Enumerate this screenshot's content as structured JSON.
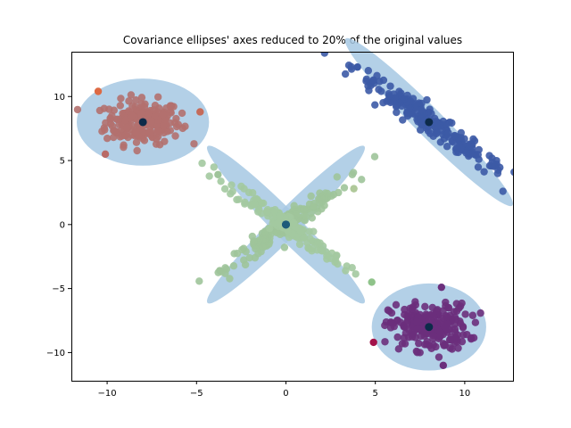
{
  "chart_data": {
    "type": "scatter",
    "title": "Covariance ellipses' axes reduced to 20% of the original values",
    "xlabel": "",
    "ylabel": "",
    "xlim": [
      -12,
      12.7
    ],
    "ylim": [
      -12.2,
      13.5
    ],
    "x_ticks": [
      -10,
      -5,
      0,
      5,
      10
    ],
    "y_ticks": [
      -10,
      -5,
      0,
      5,
      10
    ],
    "grid": false,
    "legend": "none",
    "ellipse_color": "#a6c8e3",
    "clusters": [
      {
        "center": [
          -8,
          8
        ],
        "point_color": "#b2706e",
        "center_color": "#0d2b4a",
        "spread": [
          1.05,
          0.85
        ],
        "angle_deg": 0,
        "ellipse": {
          "rx": 3.7,
          "ry": 3.4,
          "angle_deg": 0
        },
        "n_points": 220,
        "outliers": [
          [
            -10.5,
            10.4,
            "#dd6a44"
          ],
          [
            -4.8,
            8.8,
            "#c56b5a"
          ],
          [
            -10.1,
            5.5,
            "#b86a66"
          ]
        ]
      },
      {
        "center": [
          8,
          8
        ],
        "point_color": "#3c5aa6",
        "center_color": "#0d2b4a",
        "spread": [
          3.0,
          0.35
        ],
        "angle_deg": -45,
        "ellipse": {
          "rx": 6.6,
          "ry": 1.1,
          "angle_deg": -45
        },
        "n_points": 220,
        "outliers": [
          [
            4.0,
            12.3,
            "#3c5aa6"
          ],
          [
            11.7,
            4.6,
            "#3c5aa6"
          ]
        ]
      },
      {
        "center": [
          0,
          0
        ],
        "point_color": "#9fc49a",
        "center_color": "#1d5b7a",
        "spread": [
          2.3,
          0.3
        ],
        "angle_deg": 45,
        "ellipse": {
          "rx": 6.2,
          "ry": 1.05,
          "angle_deg": 45
        },
        "n_points": 160,
        "outliers": [
          [
            3.8,
            2.8,
            "#b0c99a"
          ],
          [
            -3.7,
            -3.6,
            "#9fc49a"
          ]
        ]
      },
      {
        "center": [
          0,
          0
        ],
        "point_color": "#a3c9a0",
        "center_color": "#1d5b7a",
        "spread": [
          2.3,
          0.3
        ],
        "angle_deg": -45,
        "ellipse": {
          "rx": 6.2,
          "ry": 1.05,
          "angle_deg": -45
        },
        "n_points": 160,
        "outliers": [
          [
            -3.8,
            3.9,
            "#9fc49a"
          ],
          [
            4.8,
            -4.5,
            "#8fc38a"
          ]
        ]
      },
      {
        "center": [
          8,
          -8
        ],
        "point_color": "#6b2f7c",
        "center_color": "#0d2b4a",
        "spread": [
          1.1,
          0.9
        ],
        "angle_deg": 0,
        "ellipse": {
          "rx": 3.2,
          "ry": 3.4,
          "angle_deg": 0
        },
        "n_points": 220,
        "outliers": [
          [
            4.9,
            -9.2,
            "#a3134a"
          ],
          [
            8.7,
            -4.9,
            "#6b2f7c"
          ],
          [
            8.8,
            -11.0,
            "#6b2f7c"
          ]
        ]
      }
    ]
  }
}
